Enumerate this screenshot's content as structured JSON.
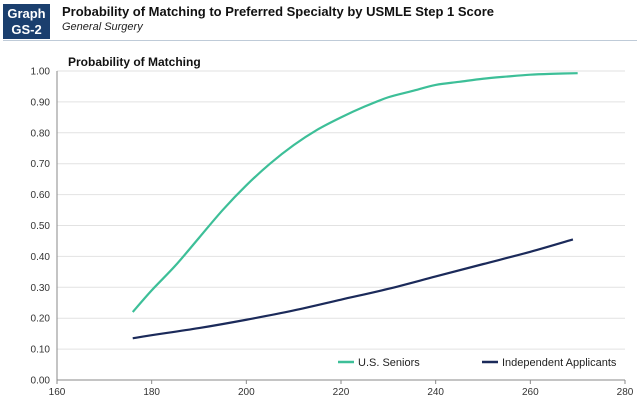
{
  "header": {
    "badge_line1": "Graph",
    "badge_line2": "GS-2",
    "title": "Probability of Matching to Preferred Specialty by USMLE Step 1 Score",
    "subtitle": "General Surgery"
  },
  "chart_data": {
    "type": "line",
    "title": "Probability of Matching",
    "xlabel": "",
    "ylabel": "",
    "xlim": [
      160,
      280
    ],
    "ylim": [
      0,
      1
    ],
    "x_ticks": [
      160,
      180,
      200,
      220,
      240,
      260,
      280
    ],
    "y_ticks": [
      "0.00",
      "0.10",
      "0.20",
      "0.30",
      "0.40",
      "0.50",
      "0.60",
      "0.70",
      "0.80",
      "0.90",
      "1.00"
    ],
    "grid": "horizontal",
    "legend_position": "bottom-right",
    "series": [
      {
        "name": "U.S. Seniors",
        "color": "#3dbf98",
        "x": [
          176,
          180,
          185,
          190,
          195,
          200,
          205,
          210,
          215,
          220,
          225,
          230,
          235,
          240,
          245,
          250,
          255,
          260,
          265,
          270
        ],
        "y": [
          0.22,
          0.29,
          0.37,
          0.46,
          0.55,
          0.63,
          0.7,
          0.76,
          0.81,
          0.85,
          0.885,
          0.915,
          0.935,
          0.955,
          0.965,
          0.975,
          0.982,
          0.988,
          0.991,
          0.993
        ]
      },
      {
        "name": "Independent Applicants",
        "color": "#1b2a5a",
        "x": [
          176,
          180,
          190,
          200,
          210,
          220,
          230,
          240,
          250,
          260,
          269
        ],
        "y": [
          0.135,
          0.145,
          0.168,
          0.195,
          0.225,
          0.26,
          0.295,
          0.335,
          0.375,
          0.415,
          0.455
        ]
      }
    ]
  }
}
